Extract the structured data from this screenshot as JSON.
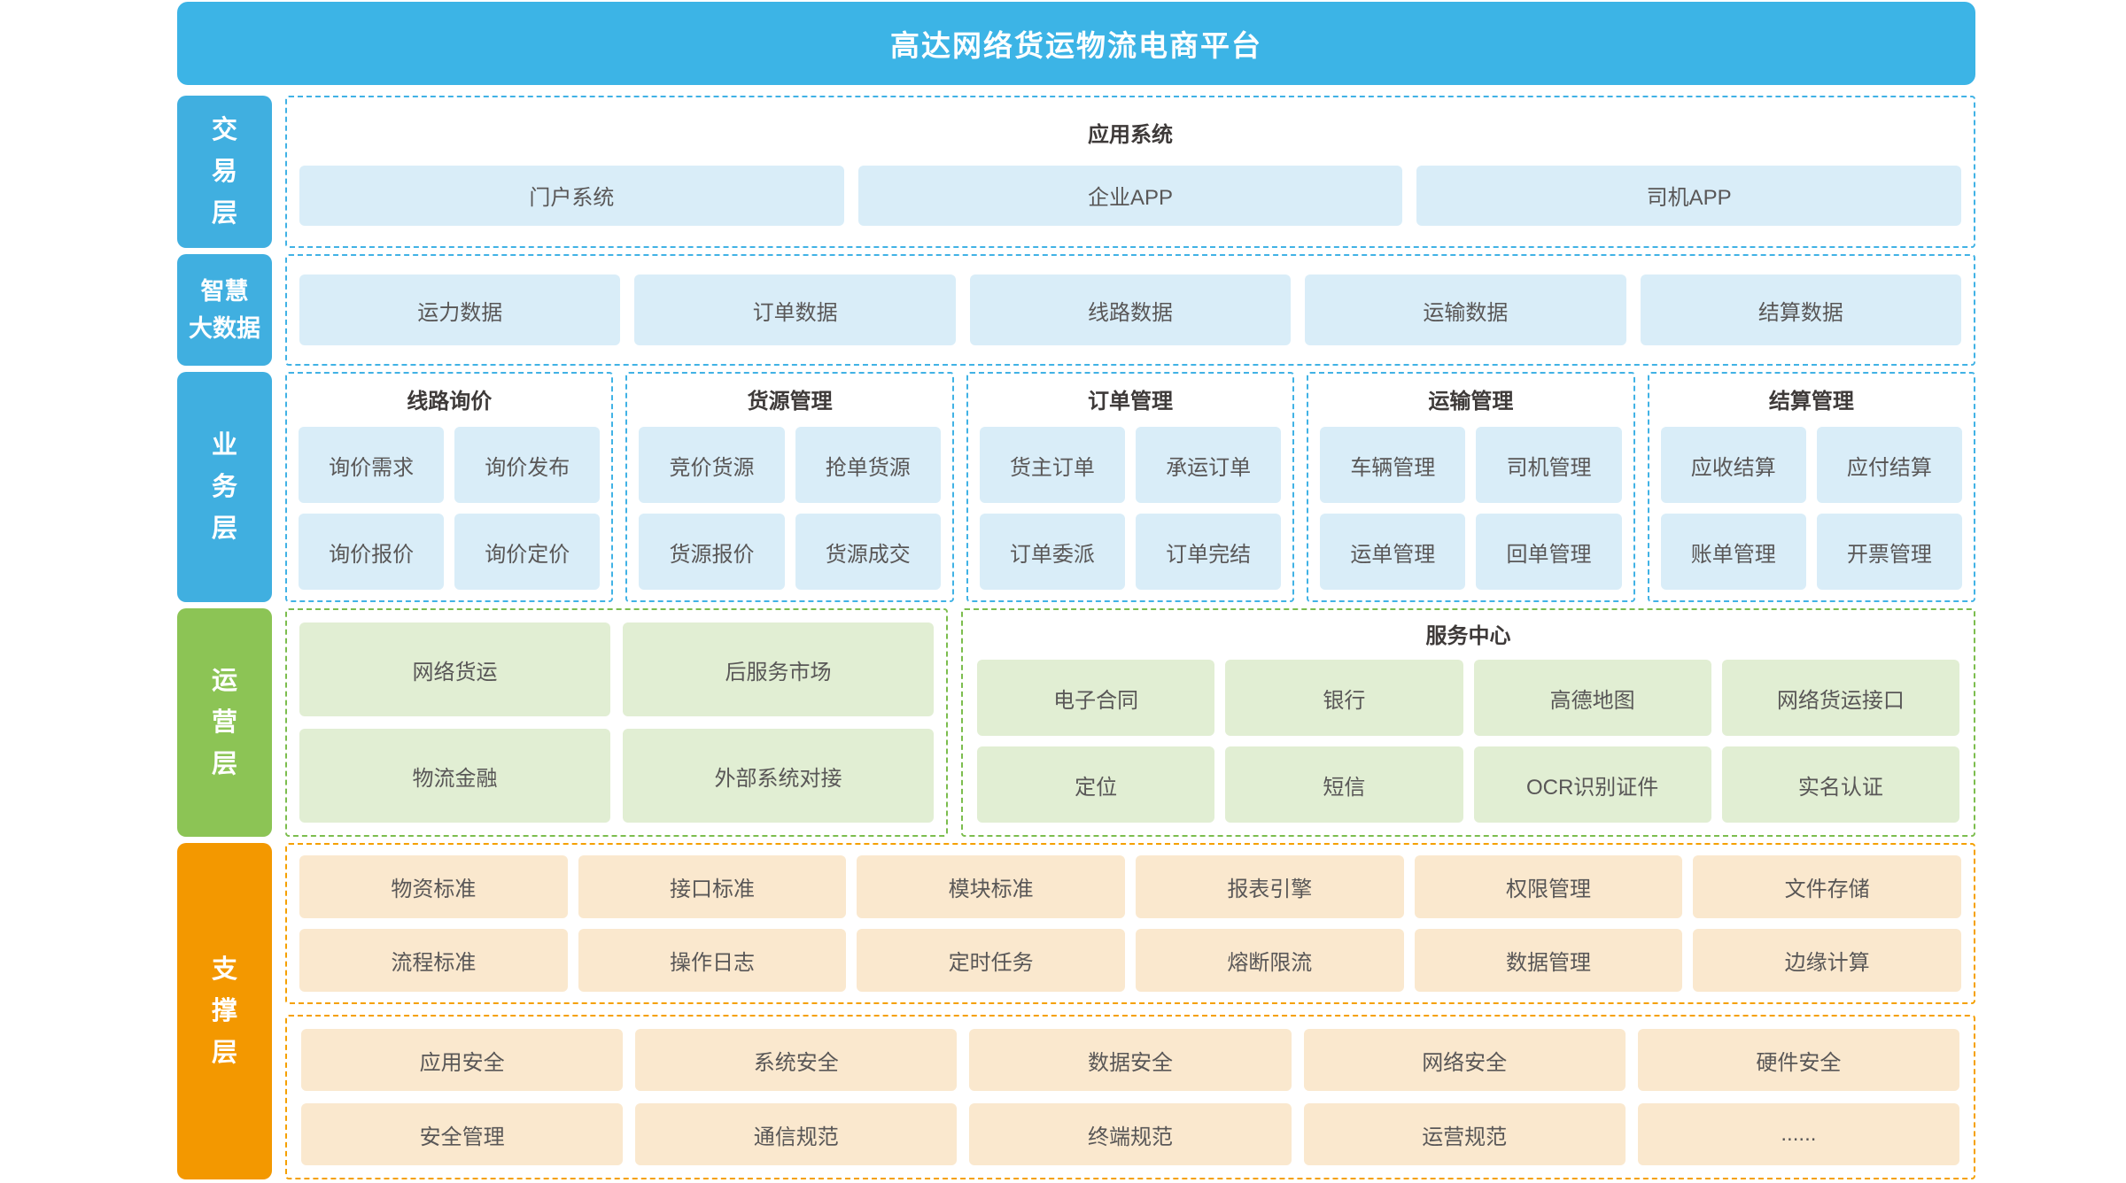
{
  "header": {
    "title": "高达网络货运物流电商平台"
  },
  "palette": {
    "header_blue": "#3cb4e6",
    "label_blue": "#40afe0",
    "box_blue": "#d9edf8",
    "dash_blue": "#41b2e5",
    "label_green": "#8cc455",
    "box_green": "#e1eed3",
    "dash_green": "#7cbd4e",
    "label_orange": "#f39800",
    "box_orange": "#fae8ce",
    "dash_orange": "#f5a000",
    "box_text": "#595757",
    "title_text": "#3e3a39"
  },
  "layers": [
    {
      "id": "trade",
      "label": "交易层",
      "label_lines": [
        "交",
        "易",
        "层"
      ],
      "theme": "blue",
      "groups": [
        {
          "title": "应用系统",
          "items": [
            "门户系统",
            "企业APP",
            "司机APP"
          ]
        }
      ]
    },
    {
      "id": "bigdata",
      "label": "智慧大数据",
      "label_lines": [
        "智慧",
        "大数据"
      ],
      "theme": "blue",
      "groups": [
        {
          "title": "",
          "items": [
            "运力数据",
            "订单数据",
            "线路数据",
            "运输数据",
            "结算数据"
          ]
        }
      ]
    },
    {
      "id": "business",
      "label": "业务层",
      "label_lines": [
        "业",
        "务",
        "层"
      ],
      "theme": "blue",
      "groups": [
        {
          "title": "线路询价",
          "items": [
            "询价需求",
            "询价发布",
            "询价报价",
            "询价定价"
          ]
        },
        {
          "title": "货源管理",
          "items": [
            "竞价货源",
            "抢单货源",
            "货源报价",
            "货源成交"
          ]
        },
        {
          "title": "订单管理",
          "items": [
            "货主订单",
            "承运订单",
            "订单委派",
            "订单完结"
          ]
        },
        {
          "title": "运输管理",
          "items": [
            "车辆管理",
            "司机管理",
            "运单管理",
            "回单管理"
          ]
        },
        {
          "title": "结算管理",
          "items": [
            "应收结算",
            "应付结算",
            "账单管理",
            "开票管理"
          ]
        }
      ]
    },
    {
      "id": "operation",
      "label": "运营层",
      "label_lines": [
        "运",
        "营",
        "层"
      ],
      "theme": "green",
      "groups": [
        {
          "title": "",
          "items": [
            "网络货运",
            "后服务市场",
            "物流金融",
            "外部系统对接"
          ]
        },
        {
          "title": "服务中心",
          "items": [
            "电子合同",
            "银行",
            "高德地图",
            "网络货运接口",
            "定位",
            "短信",
            "OCR识别证件",
            "实名认证"
          ]
        }
      ]
    },
    {
      "id": "support",
      "label": "支撑层",
      "label_lines": [
        "支",
        "撑",
        "层"
      ],
      "theme": "orange",
      "groups": [
        {
          "title": "",
          "items": [
            "物资标准",
            "接口标准",
            "模块标准",
            "报表引擎",
            "权限管理",
            "文件存储",
            "流程标准",
            "操作日志",
            "定时任务",
            "熔断限流",
            "数据管理",
            "边缘计算"
          ]
        },
        {
          "title": "",
          "items": [
            "应用安全",
            "系统安全",
            "数据安全",
            "网络安全",
            "硬件安全",
            "安全管理",
            "通信规范",
            "终端规范",
            "运营规范",
            "......"
          ]
        }
      ]
    }
  ]
}
